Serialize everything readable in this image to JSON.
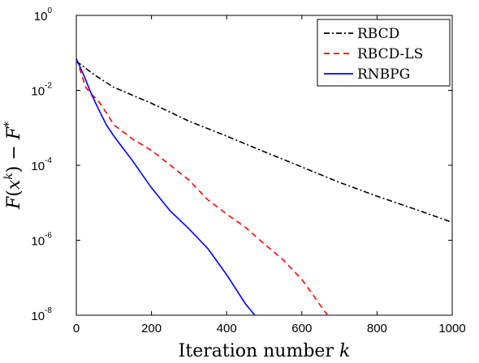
{
  "chart_data": {
    "type": "line",
    "title": "",
    "xlabel": "Iteration number",
    "xlabel_var": "k",
    "ylabel": "F(x^k) − F^*",
    "xlim": [
      0,
      1000
    ],
    "ylim": [
      1e-08,
      1
    ],
    "yscale": "log",
    "grid": false,
    "legend_position": "top-right",
    "x_ticks": [
      "0",
      "200",
      "400",
      "600",
      "800",
      "1000"
    ],
    "y_ticks": [
      {
        "base": "10",
        "exp": "0"
      },
      {
        "base": "10",
        "exp": "-2"
      },
      {
        "base": "10",
        "exp": "-4"
      },
      {
        "base": "10",
        "exp": "-6"
      },
      {
        "base": "10",
        "exp": "-8"
      }
    ],
    "series": [
      {
        "name": "RBCD",
        "color": "#000000",
        "style": "dash-dot",
        "x": [
          0,
          50,
          100,
          200,
          300,
          400,
          500,
          600,
          700,
          800,
          900,
          1000
        ],
        "y": [
          0.06,
          0.025,
          0.012,
          0.0045,
          0.0015,
          0.0006,
          0.00023,
          9e-05,
          3.5e-05,
          1.5e-05,
          6.8e-06,
          3e-06
        ]
      },
      {
        "name": "RBCD-LS",
        "color": "#ff0000",
        "style": "dashed",
        "x": [
          0,
          10,
          25,
          40,
          60,
          80,
          100,
          150,
          200,
          250,
          300,
          350,
          400,
          450,
          500,
          550,
          600,
          650,
          668
        ],
        "y": [
          0.07,
          0.035,
          0.012,
          0.008,
          0.005,
          0.0025,
          0.0012,
          0.0005,
          0.00025,
          0.0001,
          4e-05,
          1.2e-05,
          5e-06,
          2.2e-06,
          8e-07,
          3e-07,
          9e-08,
          1.8e-08,
          1e-08
        ]
      },
      {
        "name": "RNBPG",
        "color": "#0000ff",
        "style": "solid",
        "x": [
          0,
          20,
          40,
          60,
          80,
          100,
          150,
          200,
          250,
          300,
          350,
          400,
          450,
          475
        ],
        "y": [
          0.07,
          0.025,
          0.008,
          0.003,
          0.0012,
          0.0006,
          0.00013,
          2.5e-05,
          6e-06,
          2e-06,
          6e-07,
          1.2e-07,
          2e-08,
          1e-08
        ]
      }
    ]
  }
}
